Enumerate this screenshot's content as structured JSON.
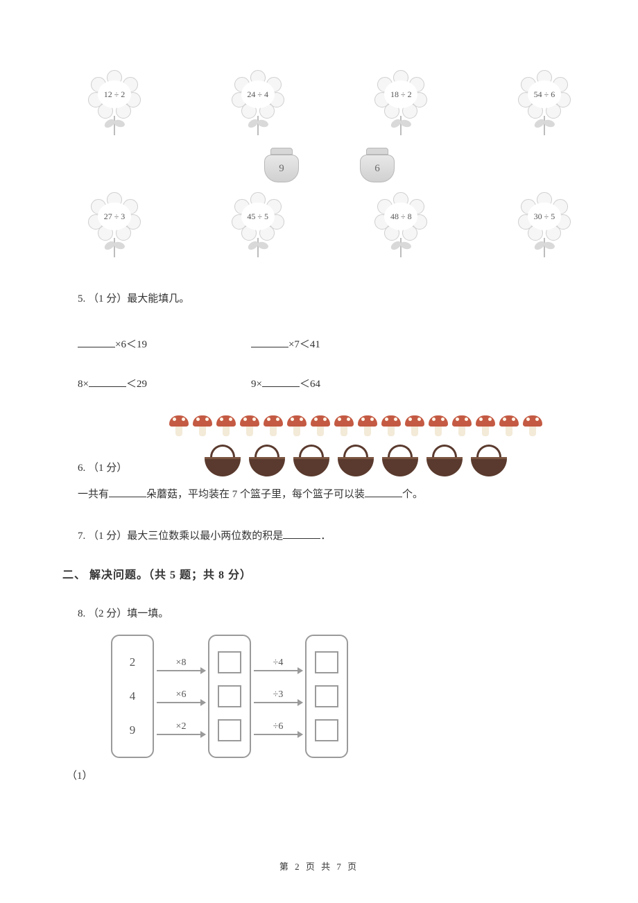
{
  "colors": {
    "text": "#333333",
    "muted": "#555555",
    "line": "#9a9a9a",
    "petal_fill": "#f6f6f6",
    "petal_border": "#cfcfcf",
    "pot_border": "#b8b8b8",
    "mush_cap": "#c45a43",
    "mush_stalk": "#f3ead8",
    "basket_color": "#5a3a2e",
    "basket_rim": "#7a5440"
  },
  "flowers": {
    "row1": [
      "12 ÷ 2",
      "24 ÷ 4",
      "18 ÷ 2",
      "54 ÷ 6"
    ],
    "row2": [
      "27 ÷ 3",
      "45 ÷ 5",
      "48 ÷ 8",
      "30 ÷ 5"
    ],
    "pots": [
      "9",
      "6"
    ]
  },
  "q5": {
    "label": "5. （1 分）最大能填几。",
    "items": [
      {
        "pre": "",
        "mid": "×6＜19",
        "pre2": "",
        "mid2": "×7＜41"
      },
      {
        "pre": "8×",
        "mid": "＜29",
        "pre2": "9×",
        "mid2": "＜64"
      }
    ]
  },
  "q6": {
    "label": "6. （1 分）",
    "mushroom_count": 16,
    "basket_count": 7,
    "sentence_parts": [
      "一共有",
      "朵蘑菇，平均装在 7 个篮子里，每个篮子可以装",
      "个。"
    ]
  },
  "q7": {
    "text": "7. （1 分）最大三位数乘以最小两位数的积是",
    "tail": "．"
  },
  "section2": "二、 解决问题。（共 5 题；共 8 分）",
  "q8": {
    "label": "8. （2 分）填一填。",
    "inputs": [
      "2",
      "4",
      "9"
    ],
    "ops1": [
      "×8",
      "×6",
      "×2"
    ],
    "ops2": [
      "÷4",
      "÷3",
      "÷6"
    ],
    "sub": "（1）"
  },
  "footer": "第 2 页 共 7 页"
}
